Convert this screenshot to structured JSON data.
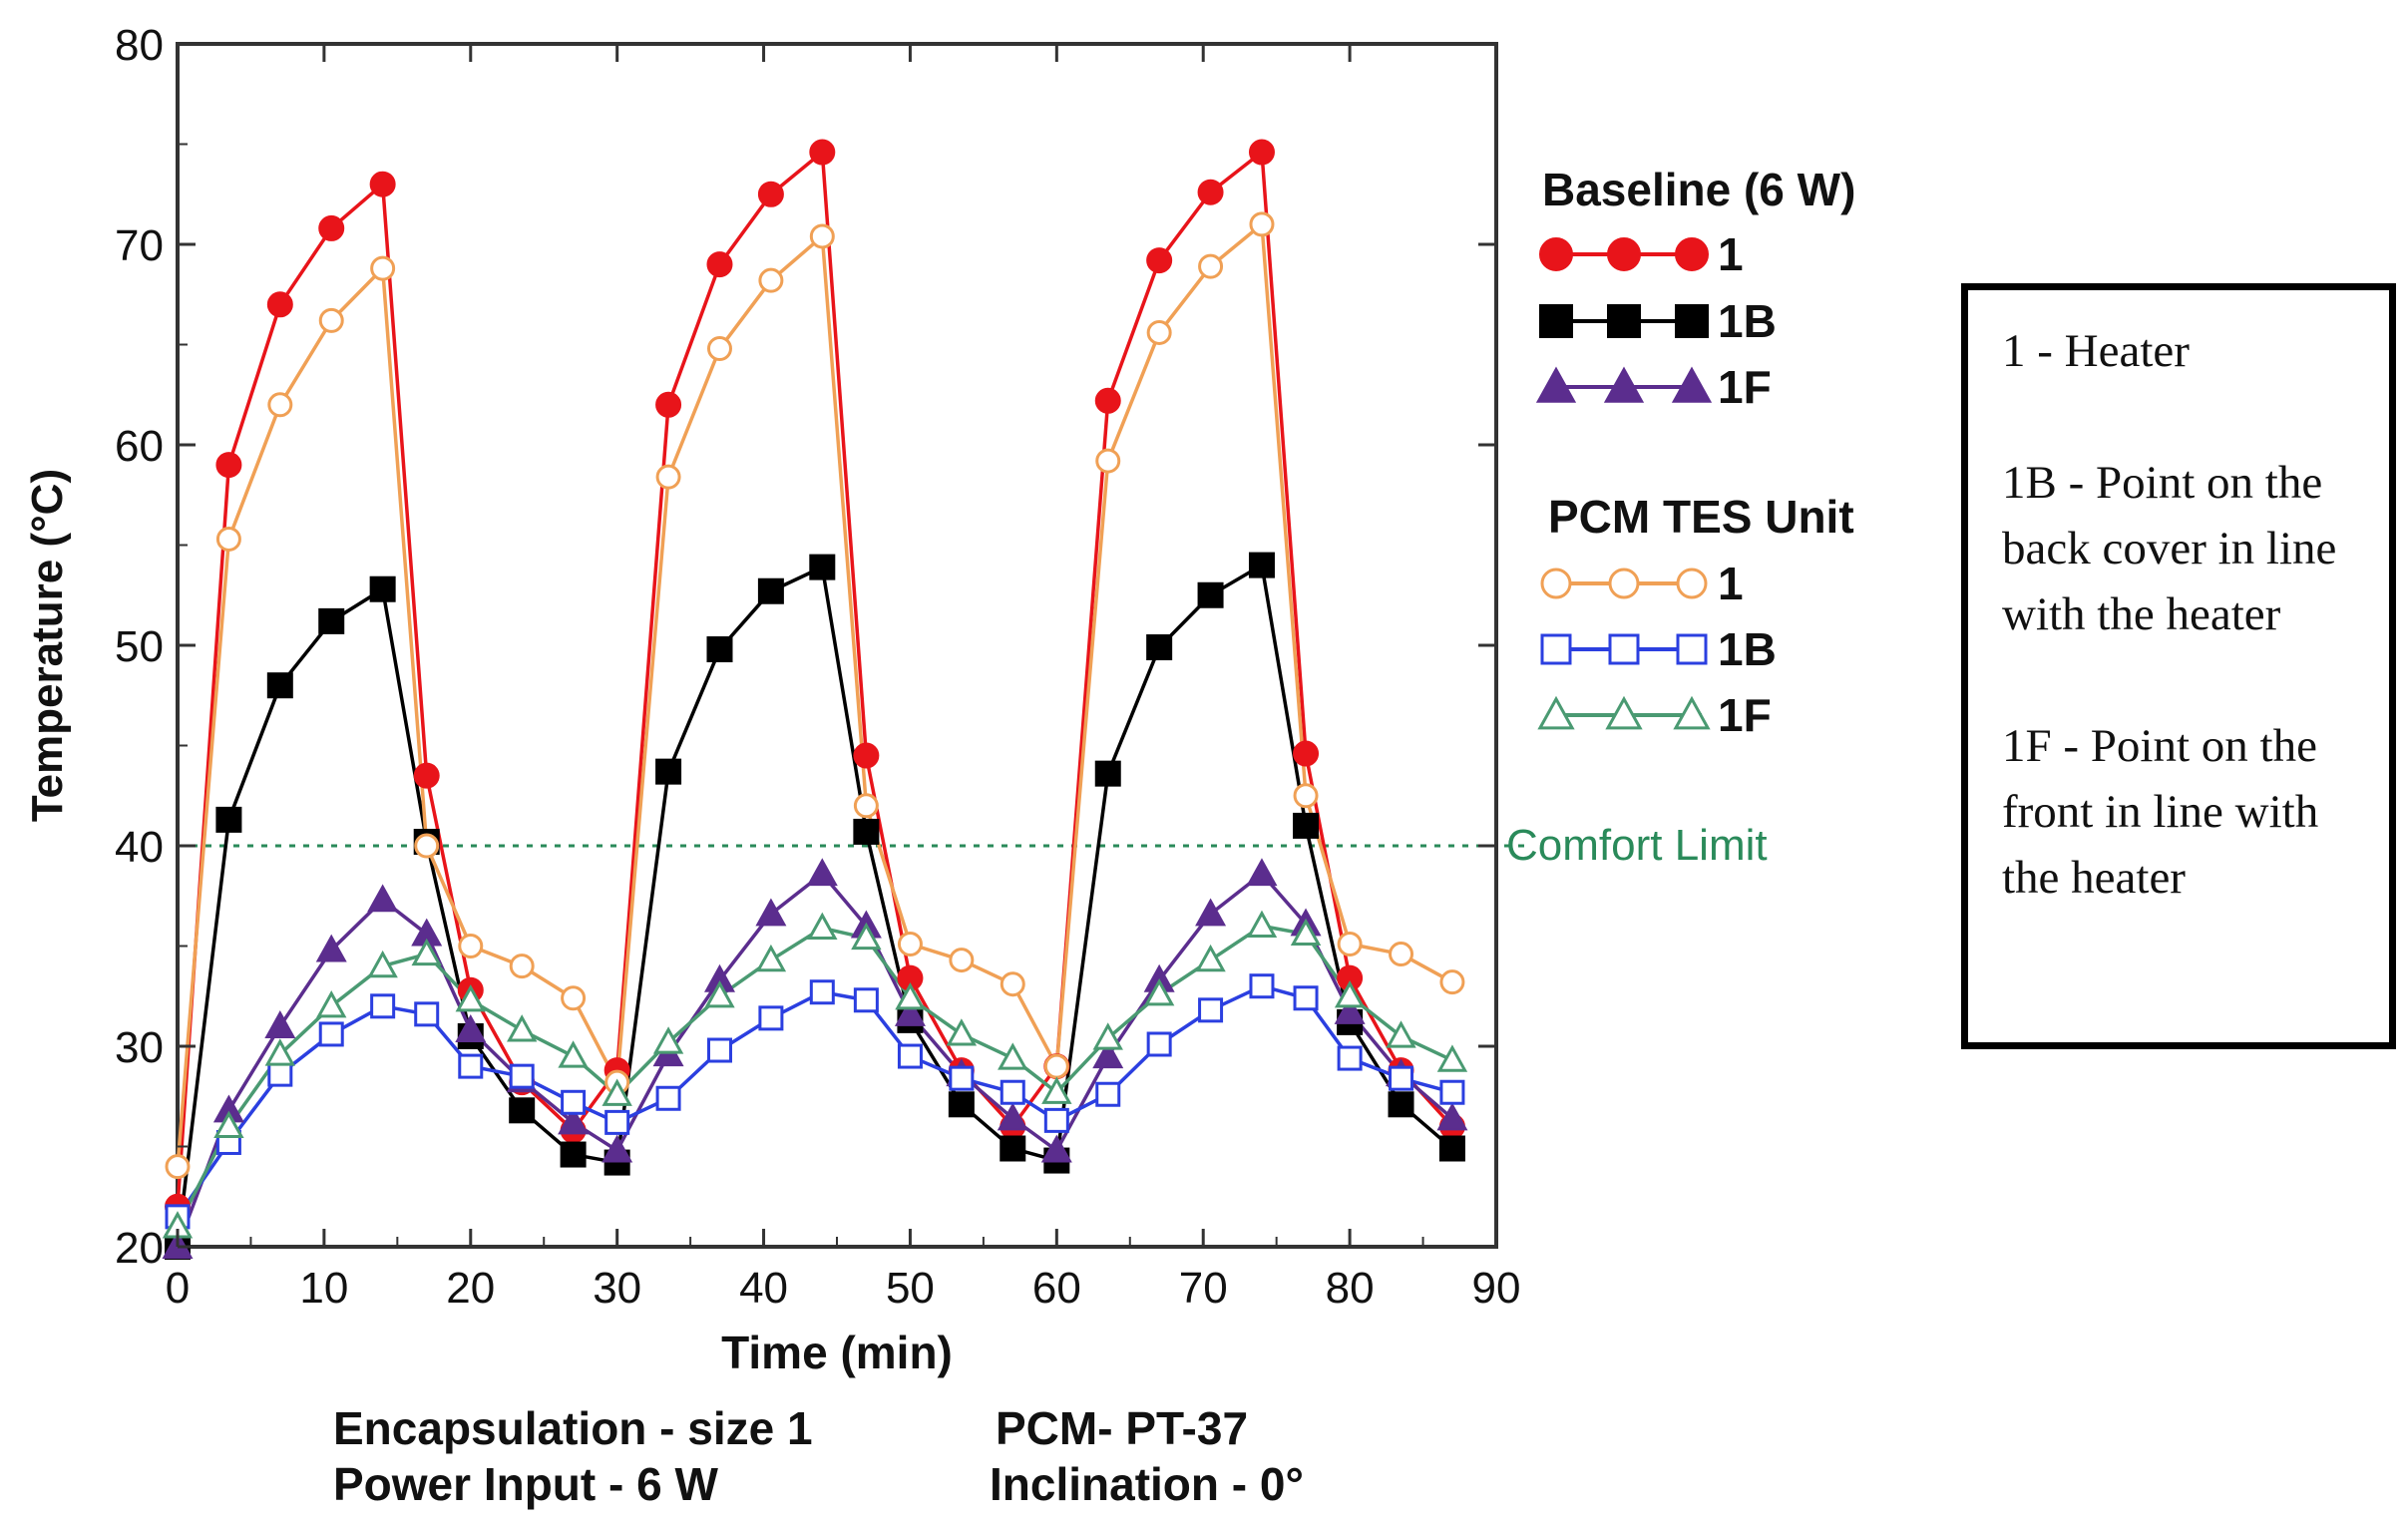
{
  "chart_data": {
    "type": "line",
    "xlabel": "Time (min)",
    "ylabel": "Temperature (°C)",
    "xlim": [
      0,
      90
    ],
    "ylim": [
      20,
      80
    ],
    "xticks": [
      0,
      10,
      20,
      30,
      40,
      50,
      60,
      70,
      80,
      90
    ],
    "yticks": [
      20,
      30,
      40,
      50,
      60,
      70,
      80
    ],
    "grid": false,
    "reference_line": {
      "y": 40,
      "label": "Comfort Limit"
    },
    "legend": {
      "placement": "right",
      "groups": [
        {
          "title": "Baseline (6 W)",
          "entries": [
            "1",
            "1B",
            "1F"
          ]
        },
        {
          "title": "PCM TES Unit",
          "entries": [
            "1",
            "1B",
            "1F"
          ]
        }
      ]
    },
    "annotations": [
      "Encapsulation - size 1",
      "PCM- PT-37",
      "Power Input - 6 W",
      "Inclination - 0°"
    ],
    "series": [
      {
        "name": "Baseline (6 W) 1",
        "color": "#e8141a",
        "marker": "circle",
        "filled": true,
        "x": [
          0,
          3.5,
          7,
          10.5,
          14,
          17,
          20,
          23.5,
          27,
          30,
          33.5,
          37,
          40.5,
          44,
          47,
          50,
          53.5,
          57,
          60,
          63.5,
          67,
          70.5,
          74,
          77,
          80,
          83.5,
          87
        ],
        "y": [
          22,
          59,
          67,
          70.8,
          73,
          43.5,
          32.8,
          28.2,
          25.8,
          28.8,
          62,
          69,
          72.5,
          74.6,
          44.5,
          33.4,
          28.8,
          26,
          29,
          62.2,
          69.2,
          72.6,
          74.6,
          44.6,
          33.4,
          28.8,
          26
        ]
      },
      {
        "name": "Baseline (6 W) 1B",
        "color": "#000000",
        "marker": "square",
        "filled": true,
        "x": [
          0,
          3.5,
          7,
          10.5,
          14,
          17,
          20,
          23.5,
          27,
          30,
          33.5,
          37,
          40.5,
          44,
          47,
          50,
          53.5,
          57,
          60,
          63.5,
          67,
          70.5,
          74,
          77,
          80,
          83.5,
          87
        ],
        "y": [
          20,
          41.3,
          48,
          51.2,
          52.8,
          40.2,
          30.5,
          26.8,
          24.6,
          24.2,
          43.7,
          49.8,
          52.7,
          53.9,
          40.7,
          31.3,
          27.1,
          24.9,
          24.3,
          43.6,
          49.9,
          52.5,
          54,
          41,
          31.2,
          27.1,
          24.9
        ]
      },
      {
        "name": "Baseline (6 W) 1F",
        "color": "#5b2d8e",
        "marker": "triangle",
        "filled": true,
        "x": [
          0,
          3.5,
          7,
          10.5,
          14,
          17,
          20,
          23.5,
          27,
          30,
          33.5,
          37,
          40.5,
          44,
          47,
          50,
          53.5,
          57,
          60,
          63.5,
          67,
          70.5,
          74,
          77,
          80,
          83.5,
          87
        ],
        "y": [
          20,
          26.8,
          31,
          34.8,
          37.3,
          35.6,
          30.8,
          28.3,
          26.2,
          24.8,
          29.6,
          33.3,
          36.6,
          38.6,
          36,
          31.6,
          28.6,
          26.4,
          24.8,
          29.5,
          33.3,
          36.6,
          38.6,
          36.1,
          31.7,
          28.6,
          26.4
        ]
      },
      {
        "name": "PCM TES Unit 1",
        "color": "#f0a055",
        "marker": "circle",
        "filled": false,
        "x": [
          0,
          3.5,
          7,
          10.5,
          14,
          17,
          20,
          23.5,
          27,
          30,
          33.5,
          37,
          40.5,
          44,
          47,
          50,
          53.5,
          57,
          60,
          63.5,
          67,
          70.5,
          74,
          77,
          80,
          83.5,
          87
        ],
        "y": [
          24,
          55.3,
          62,
          66.2,
          68.8,
          40,
          35,
          34,
          32.4,
          28.2,
          58.4,
          64.8,
          68.2,
          70.4,
          42,
          35.1,
          34.3,
          33.1,
          29,
          59.2,
          65.6,
          68.9,
          71,
          42.5,
          35.1,
          34.6,
          33.2
        ]
      },
      {
        "name": "PCM TES Unit 1B",
        "color": "#2b3fe0",
        "marker": "square",
        "filled": false,
        "x": [
          0,
          3.5,
          7,
          10.5,
          14,
          17,
          20,
          23.5,
          27,
          30,
          33.5,
          37,
          40.5,
          44,
          47,
          50,
          53.5,
          57,
          60,
          63.5,
          67,
          70.5,
          74,
          77,
          80,
          83.5,
          87
        ],
        "y": [
          21.5,
          25.2,
          28.6,
          30.6,
          32,
          31.6,
          29,
          28.5,
          27.2,
          26.2,
          27.4,
          29.8,
          31.4,
          32.7,
          32.3,
          29.5,
          28.4,
          27.7,
          26.3,
          27.6,
          30.1,
          31.8,
          33,
          32.4,
          29.4,
          28.4,
          27.7
        ]
      },
      {
        "name": "PCM TES Unit 1F",
        "color": "#4a9a72",
        "marker": "triangle",
        "filled": false,
        "x": [
          0,
          3.5,
          7,
          10.5,
          14,
          17,
          20,
          23.5,
          27,
          30,
          33.5,
          37,
          40.5,
          44,
          47,
          50,
          53.5,
          57,
          60,
          63.5,
          67,
          70.5,
          74,
          77,
          80,
          83.5,
          87
        ],
        "y": [
          21,
          26,
          29.6,
          32,
          34,
          34.6,
          32.3,
          30.8,
          29.5,
          27.6,
          30.2,
          32.5,
          34.3,
          35.9,
          35.4,
          32.4,
          30.6,
          29.4,
          27.7,
          30.4,
          32.6,
          34.3,
          36,
          35.6,
          32.5,
          30.5,
          29.3
        ]
      }
    ]
  },
  "legend": {
    "baseline_title": "Baseline (6 W)",
    "baseline_labels": [
      "1",
      "1B",
      "1F"
    ],
    "pcm_title": "PCM TES Unit",
    "pcm_labels": [
      "1",
      "1B",
      "1F"
    ]
  },
  "footer": {
    "encapsulation": "Encapsulation - size 1",
    "pcm": "PCM- PT-37",
    "power": "Power Input - 6 W",
    "inclination": "Inclination - 0°"
  },
  "note_box": {
    "heater": "1 - Heater",
    "back_cover": "1B - Point on the back cover in line with the heater",
    "front": "1F - Point on the front in line with the heater"
  }
}
